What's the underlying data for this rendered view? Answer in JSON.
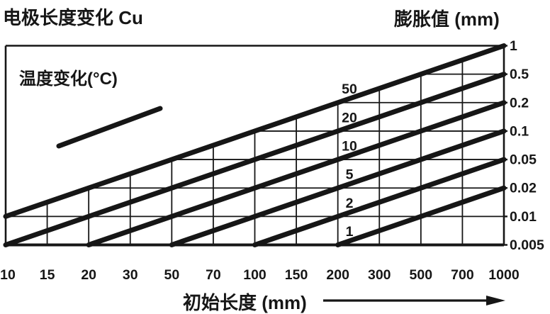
{
  "title": "电极长度变化 Cu",
  "right_axis_title": "膨胀值 (mm)",
  "x_axis_title": "初始长度 (mm)",
  "legend_label": "温度变化(°C)",
  "colors": {
    "ink": "#161616",
    "background": "#ffffff"
  },
  "chart_data": {
    "type": "line",
    "title": "电极长度变化 Cu",
    "x_axis": {
      "label": "初始长度 (mm)",
      "scale": "log",
      "range": [
        10,
        1000
      ],
      "ticks": [
        "10",
        "15",
        "20",
        "30",
        "50",
        "70",
        "100",
        "150",
        "200",
        "300",
        "500",
        "700",
        "1000"
      ]
    },
    "y_axis": {
      "label": "膨胀值 (mm)",
      "scale": "log",
      "side": "right",
      "range": [
        0.005,
        1
      ],
      "ticks": [
        "1",
        "0.5",
        "0.2",
        "0.1",
        "0.05",
        "0.02",
        "0.01",
        "0.005"
      ]
    },
    "legend": {
      "label": "温度变化(°C)",
      "position": "inside-top-left"
    },
    "grid": "on-below-topmost-line",
    "series": [
      {
        "name": "50",
        "unit": "°C",
        "points": [
          [
            "10",
            "0.01"
          ],
          [
            "1000",
            "1"
          ]
        ]
      },
      {
        "name": "20",
        "unit": "°C",
        "points": [
          [
            "10",
            "0.005"
          ],
          [
            "1000",
            "0.5"
          ]
        ]
      },
      {
        "name": "10",
        "unit": "°C",
        "points": [
          [
            "20",
            "0.005"
          ],
          [
            "1000",
            "0.2"
          ]
        ]
      },
      {
        "name": "5",
        "unit": "°C",
        "points": [
          [
            "50",
            "0.005"
          ],
          [
            "1000",
            "0.1"
          ]
        ]
      },
      {
        "name": "2",
        "unit": "°C",
        "points": [
          [
            "100",
            "0.005"
          ],
          [
            "1000",
            "0.05"
          ]
        ]
      },
      {
        "name": "1",
        "unit": "°C",
        "points": [
          [
            "200",
            "0.005"
          ],
          [
            "1000",
            "0.02"
          ]
        ]
      }
    ]
  }
}
